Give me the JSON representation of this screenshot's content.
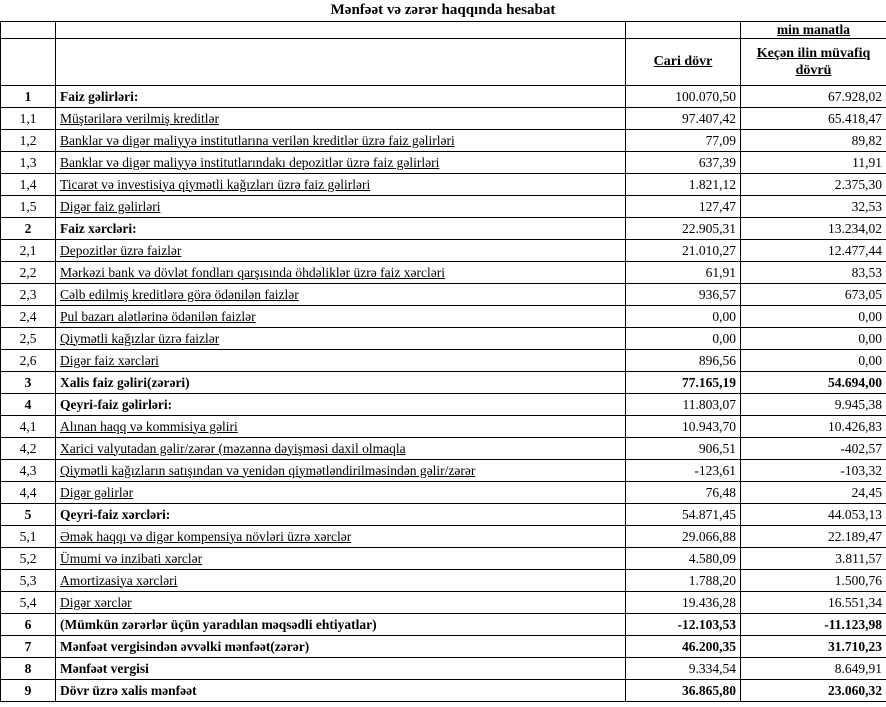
{
  "title": "Mənfəət və zərər haqqında hesabat",
  "table": {
    "unit_note": "min manatla",
    "headers": {
      "current": "Cari dövr",
      "previous": "Keçən ilin müvafiq dövrü"
    },
    "rows": [
      {
        "no": "1",
        "label": "Faiz gəlirləri:",
        "current": "100.070,50",
        "previous": "67.928,02",
        "bold": true,
        "value_bold": false
      },
      {
        "no": "1,1",
        "label": "Müştərilərə verilmiş kreditlər",
        "current": "97.407,42",
        "previous": "65.418,47",
        "bold": false,
        "value_bold": false
      },
      {
        "no": "1,2",
        "label": "Banklar və digər maliyyə institutlarına verilən kreditlər üzrə faiz gəlirləri",
        "current": "77,09",
        "previous": "89,82",
        "bold": false,
        "value_bold": false
      },
      {
        "no": "1,3",
        "label": "Banklar və digər maliyyə institutlarındakı depozitlər üzrə faiz gəlirləri",
        "current": "637,39",
        "previous": "11,91",
        "bold": false,
        "value_bold": false
      },
      {
        "no": "1,4",
        "label": "Ticarət və investisiya qiymətli kağızları üzrə faiz gəlirləri",
        "current": "1.821,12",
        "previous": "2.375,30",
        "bold": false,
        "value_bold": false
      },
      {
        "no": "1,5",
        "label": "Digər faiz gəlirləri",
        "current": "127,47",
        "previous": "32,53",
        "bold": false,
        "value_bold": false
      },
      {
        "no": "2",
        "label": "Faiz xərcləri:",
        "current": "22.905,31",
        "previous": "13.234,02",
        "bold": true,
        "value_bold": false
      },
      {
        "no": "2,1",
        "label": "Depozitlər üzrə faizlər",
        "current": "21.010,27",
        "previous": "12.477,44",
        "bold": false,
        "value_bold": false
      },
      {
        "no": "2,2",
        "label": "Mərkəzi bank və dövlət fondları qarşısında öhdəliklər üzrə faiz xərcləri",
        "current": "61,91",
        "previous": "83,53",
        "bold": false,
        "value_bold": false
      },
      {
        "no": "2,3",
        "label": "Cəlb edilmiş kreditlərə görə ödənilən faizlər",
        "current": "936,57",
        "previous": "673,05",
        "bold": false,
        "value_bold": false
      },
      {
        "no": "2,4",
        "label": "Pul bazarı alətlərinə ödənilən faizlər",
        "current": "0,00",
        "previous": "0,00",
        "bold": false,
        "value_bold": false
      },
      {
        "no": "2,5",
        "label": "Qiymətli kağızlar üzrə faizlər",
        "current": "0,00",
        "previous": "0,00",
        "bold": false,
        "value_bold": false
      },
      {
        "no": "2,6",
        "label": "Digər faiz xərcləri",
        "current": "896,56",
        "previous": "0,00",
        "bold": false,
        "value_bold": false
      },
      {
        "no": "3",
        "label": "Xalis faiz gəliri(zərəri)",
        "current": "77.165,19",
        "previous": "54.694,00",
        "bold": true,
        "value_bold": true
      },
      {
        "no": "4",
        "label": "Qeyri-faiz gəlirləri:",
        "current": "11.803,07",
        "previous": "9.945,38",
        "bold": true,
        "value_bold": false
      },
      {
        "no": "4,1",
        "label": "Alınan haqq və kommisiya gəliri",
        "current": "10.943,70",
        "previous": "10.426,83",
        "bold": false,
        "value_bold": false
      },
      {
        "no": "4,2",
        "label": "Xarici valyutadan gəlir/zərər (məzənnə dəyişməsi daxil olmaqla",
        "current": "906,51",
        "previous": "-402,57",
        "bold": false,
        "value_bold": false
      },
      {
        "no": "4,3",
        "label": "Qiymətli kağızların satışından və yenidən qiymətləndirilməsindən gəlir/zərər",
        "current": "-123,61",
        "previous": "-103,32",
        "bold": false,
        "value_bold": false
      },
      {
        "no": "4,4",
        "label": "Digər gəlirlər",
        "current": "76,48",
        "previous": "24,45",
        "bold": false,
        "value_bold": false
      },
      {
        "no": "5",
        "label": "Qeyri-faiz xərcləri:",
        "current": "54.871,45",
        "previous": "44.053,13",
        "bold": true,
        "value_bold": false
      },
      {
        "no": "5,1",
        "label": "Əmək haqqı və digər kompensiya növləri üzrə xərclər",
        "current": "29.066,88",
        "previous": "22.189,47",
        "bold": false,
        "value_bold": false
      },
      {
        "no": "5,2",
        "label": "Ümumi və inzibati xərclər",
        "current": "4.580,09",
        "previous": "3.811,57",
        "bold": false,
        "value_bold": false
      },
      {
        "no": "5,3",
        "label": "Amortizasiya xərcləri",
        "current": "1.788,20",
        "previous": "1.500,76",
        "bold": false,
        "value_bold": false
      },
      {
        "no": "5,4",
        "label": "Digər xərclər",
        "current": "19.436,28",
        "previous": "16.551,34",
        "bold": false,
        "value_bold": false
      },
      {
        "no": "6",
        "label": "(Mümkün zərərlər üçün yaradılan məqsədli ehtiyatlar)",
        "current": "-12.103,53",
        "previous": "-11.123,98",
        "bold": true,
        "value_bold": true
      },
      {
        "no": "7",
        "label": "Mənfəət vergisindən əvvəlki mənfəət(zərər)",
        "current": "46.200,35",
        "previous": "31.710,23",
        "bold": true,
        "value_bold": true
      },
      {
        "no": "8",
        "label": "Mənfəət vergisi",
        "current": "9.334,54",
        "previous": "8.649,91",
        "bold": true,
        "value_bold": false
      },
      {
        "no": "9",
        "label": "Dövr üzrə xalis mənfəət",
        "current": "36.865,80",
        "previous": "23.060,32",
        "bold": true,
        "value_bold": true
      }
    ]
  }
}
